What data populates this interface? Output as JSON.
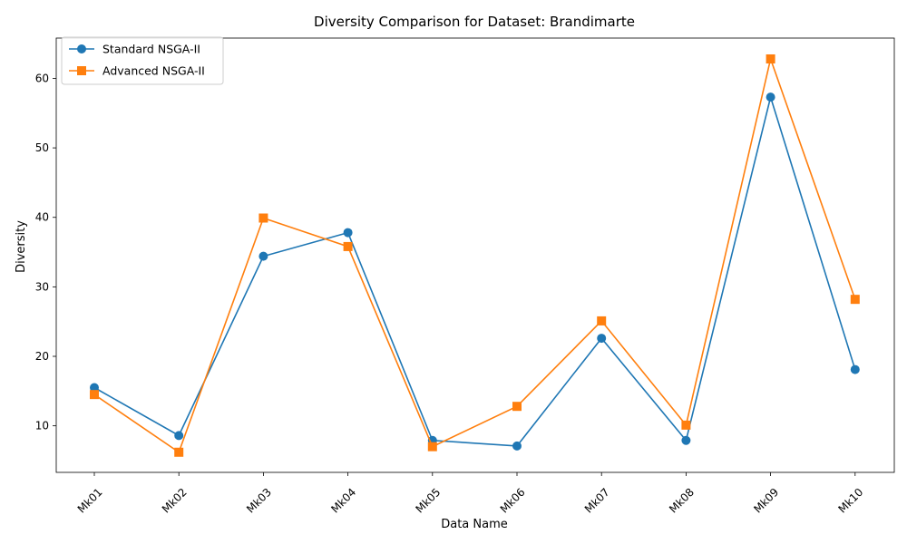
{
  "chart_data": {
    "type": "line",
    "title": "Diversity Comparison for Dataset: Brandimarte",
    "xlabel": "Data Name",
    "ylabel": "Diversity",
    "categories": [
      "Mk01",
      "Mk02",
      "Mk03",
      "Mk04",
      "Mk05",
      "Mk06",
      "Mk07",
      "Mk08",
      "Mk09",
      "Mk10"
    ],
    "ylim": [
      3.3,
      65.8
    ],
    "yticks": [
      10,
      20,
      30,
      40,
      50,
      60
    ],
    "grid": false,
    "legend_position": "top-left",
    "series": [
      {
        "name": "Standard NSGA-II",
        "color": "#1f77b4",
        "marker": "circle",
        "values": [
          15.5,
          8.6,
          34.4,
          37.8,
          7.9,
          7.1,
          22.6,
          7.9,
          57.3,
          18.1
        ]
      },
      {
        "name": "Advanced NSGA-II",
        "color": "#ff7f0e",
        "marker": "square",
        "values": [
          14.5,
          6.2,
          39.9,
          35.8,
          7.0,
          12.8,
          25.1,
          10.1,
          62.8,
          28.2
        ]
      }
    ]
  }
}
